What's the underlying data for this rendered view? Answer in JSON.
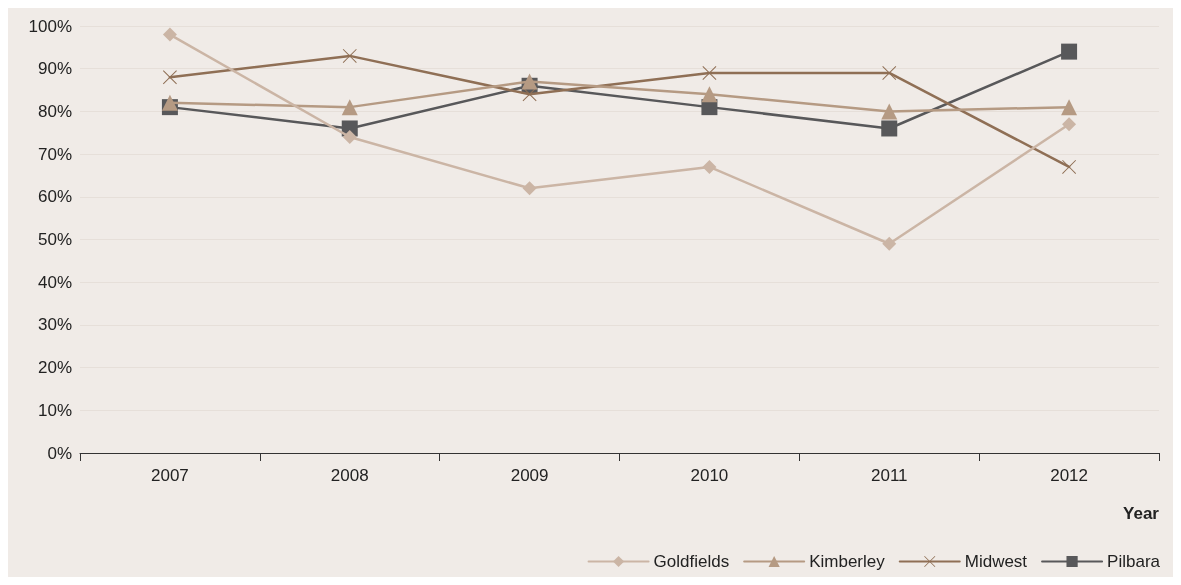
{
  "chart_data": {
    "type": "line",
    "xlabel": "Year",
    "categories": [
      "2007",
      "2008",
      "2009",
      "2010",
      "2011",
      "2012"
    ],
    "series": [
      {
        "name": "Goldfields",
        "color": "#cbb5a5",
        "marker": "diamond",
        "values": [
          98,
          74,
          62,
          67,
          49,
          77
        ]
      },
      {
        "name": "Kimberley",
        "color": "#b59a83",
        "marker": "triangle",
        "values": [
          82,
          81,
          87,
          84,
          80,
          81
        ]
      },
      {
        "name": "Midwest",
        "color": "#8f6f55",
        "marker": "cross",
        "values": [
          88,
          93,
          84,
          89,
          89,
          67
        ]
      },
      {
        "name": "Pilbara",
        "color": "#58585a",
        "marker": "square",
        "values": [
          81,
          76,
          86,
          81,
          76,
          94
        ]
      }
    ],
    "ylim": [
      0,
      100
    ],
    "yticks": [
      {
        "value": 0,
        "label": "0%"
      },
      {
        "value": 10,
        "label": "10%"
      },
      {
        "value": 20,
        "label": "20%"
      },
      {
        "value": 30,
        "label": "30%"
      },
      {
        "value": 40,
        "label": "40%"
      },
      {
        "value": 50,
        "label": "50%"
      },
      {
        "value": 60,
        "label": "60%"
      },
      {
        "value": 70,
        "label": "70%"
      },
      {
        "value": 80,
        "label": "80%"
      },
      {
        "value": 90,
        "label": "90%"
      },
      {
        "value": 100,
        "label": "100%"
      }
    ],
    "grid": "y",
    "legend": "bottom right"
  }
}
